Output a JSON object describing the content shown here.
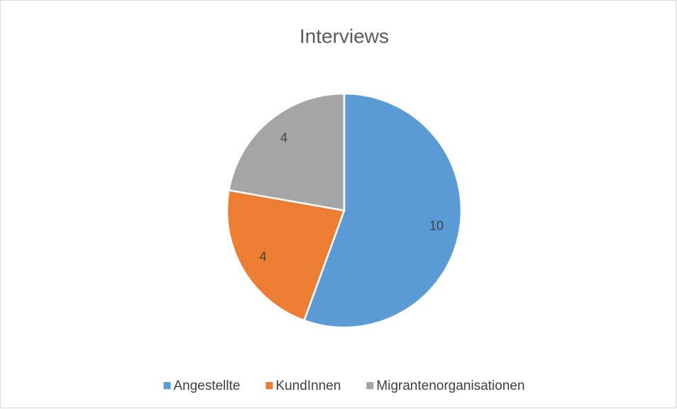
{
  "chart_data": {
    "type": "pie",
    "title": "Interviews",
    "categories": [
      "Angestellte",
      "KundInnen",
      "Migrantenorganisationen"
    ],
    "values": [
      10,
      4,
      4
    ],
    "colors": [
      "#5b9bd5",
      "#ed7d31",
      "#a5a5a5"
    ],
    "legend": "bottom"
  }
}
